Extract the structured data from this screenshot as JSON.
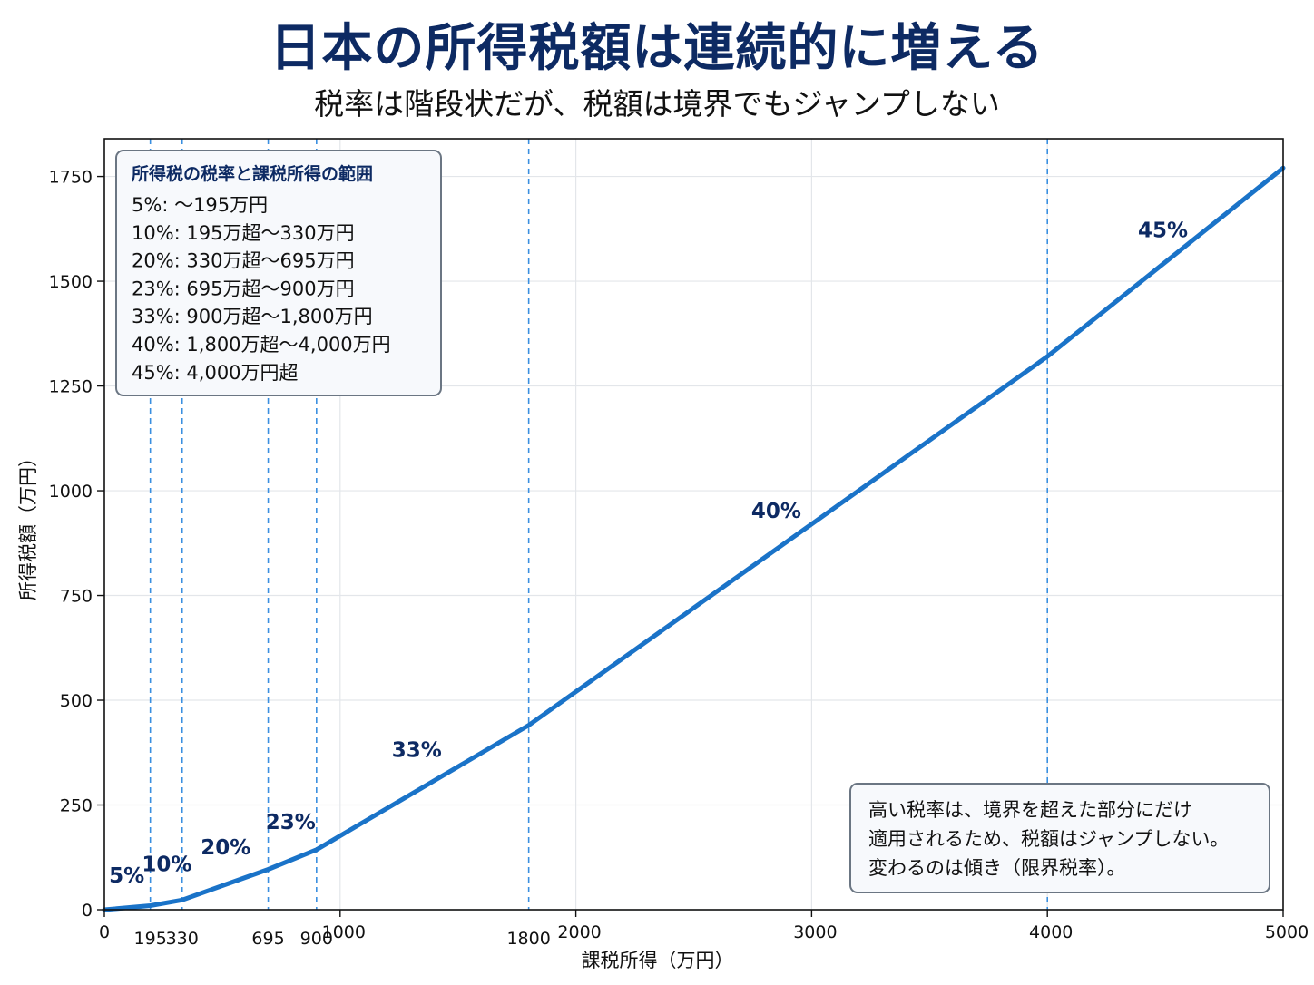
{
  "header": {
    "title": "日本の所得税額は連続的に増える",
    "subtitle": "税率は階段状だが、税額は境界でもジャンプしない"
  },
  "chart_data": {
    "type": "line",
    "xlabel": "課税所得（万円）",
    "ylabel": "所得税額（万円）",
    "xlim": [
      0,
      5000
    ],
    "ylim": [
      0,
      1840
    ],
    "x_ticks": [
      0,
      1000,
      2000,
      3000,
      4000,
      5000
    ],
    "x_tick_labels": [
      "0",
      "1000",
      "2000",
      "3000",
      "4000",
      "5000"
    ],
    "y_ticks": [
      0,
      250,
      500,
      750,
      1000,
      1250,
      1500,
      1750
    ],
    "y_tick_labels": [
      "0",
      "250",
      "500",
      "750",
      "1000",
      "1250",
      "1500",
      "1750"
    ],
    "grid": true,
    "color": "#1a73c8",
    "boundary_color": "#3a8fe0",
    "label_color": "#0d2a63",
    "boundaries": [
      195,
      330,
      695,
      900,
      1800,
      4000
    ],
    "boundary_labels": [
      "195",
      "330",
      "695",
      "900",
      "1800",
      ""
    ],
    "series": [
      {
        "x": [
          0,
          195,
          330,
          695,
          900,
          1800,
          4000,
          5000
        ],
        "y": [
          0,
          9.75,
          23.25,
          96.25,
          143.4,
          440.4,
          1320.4,
          1770.4
        ]
      }
    ],
    "rate_labels": [
      {
        "text": "5%",
        "x": 95,
        "y": 65
      },
      {
        "text": "10%",
        "x": 265,
        "y": 92
      },
      {
        "text": "20%",
        "x": 515,
        "y": 132
      },
      {
        "text": "23%",
        "x": 790,
        "y": 193
      },
      {
        "text": "33%",
        "x": 1325,
        "y": 365
      },
      {
        "text": "40%",
        "x": 2850,
        "y": 935
      },
      {
        "text": "45%",
        "x": 4490,
        "y": 1605
      }
    ],
    "legend": {
      "title": "所得税の税率と課税所得の範囲",
      "items": [
        " 5%:  〜195万円",
        "10%:  195万超〜330万円",
        "20%:  330万超〜695万円",
        "23%:  695万超〜900万円",
        "33%:  900万超〜1,800万円",
        "40%:  1,800万超〜4,000万円",
        "45%:  4,000万円超"
      ]
    },
    "note": {
      "lines": [
        "高い税率は、境界を超えた部分にだけ",
        "適用されるため、税額はジャンプしない。",
        "変わるのは傾き（限界税率）。"
      ]
    }
  }
}
